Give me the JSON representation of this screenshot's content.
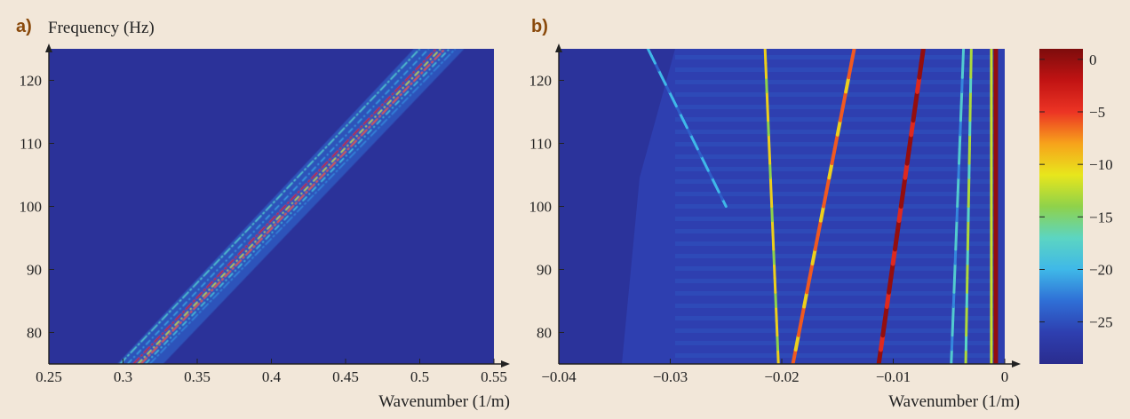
{
  "chart_data": [
    {
      "panel": "a)",
      "type": "heatmap",
      "ylabel": "Frequency (Hz)",
      "xlabel": "Wavenumber (1/m)",
      "xlim": [
        0.25,
        0.55
      ],
      "ylim": [
        75,
        125
      ],
      "xticks": [
        "0.25",
        "0.3",
        "0.35",
        "0.4",
        "0.45",
        "0.5",
        "0.55"
      ],
      "yticks": [
        "80",
        "90",
        "100",
        "110",
        "120"
      ],
      "background_level": -28,
      "ridges": [
        {
          "x0": 0.298,
          "x1": 0.5,
          "level": -18
        },
        {
          "x0": 0.303,
          "x1": 0.506,
          "level": -21
        },
        {
          "x0": 0.307,
          "x1": 0.511,
          "level": -3
        },
        {
          "x0": 0.31,
          "x1": 0.514,
          "level": -12
        },
        {
          "x0": 0.312,
          "x1": 0.517,
          "level": -6
        },
        {
          "x0": 0.315,
          "x1": 0.52,
          "level": -19
        },
        {
          "x0": 0.318,
          "x1": 0.524,
          "level": -22
        }
      ]
    },
    {
      "panel": "b)",
      "type": "heatmap",
      "xlabel": "Wavenumber (1/m)",
      "xlim": [
        -0.04,
        0
      ],
      "ylim": [
        75,
        125
      ],
      "xticks": [
        "−0.04",
        "−0.03",
        "−0.02",
        "−0.01",
        "0"
      ],
      "yticks": [
        "80",
        "90",
        "100",
        "110",
        "120"
      ],
      "background_level": -26,
      "ridges": [
        {
          "x0": -0.025,
          "x1": -0.032,
          "y0": 100,
          "y1": 125,
          "level": -20
        },
        {
          "x0": -0.0203,
          "x1": -0.0215,
          "y0": 75,
          "y1": 125,
          "level": -10
        },
        {
          "x0": -0.019,
          "x1": -0.0135,
          "y0": 75,
          "y1": 125,
          "level": -6
        },
        {
          "x0": -0.0113,
          "x1": -0.0073,
          "y0": 75,
          "y1": 125,
          "level": 0
        },
        {
          "x0": -0.0048,
          "x1": -0.0037,
          "y0": 75,
          "y1": 125,
          "level": -18
        },
        {
          "x0": -0.0035,
          "x1": -0.003,
          "y0": 75,
          "y1": 125,
          "level": -13
        },
        {
          "x0": -0.0012,
          "x1": -0.0012,
          "y0": 75,
          "y1": 125,
          "level": -12
        },
        {
          "x0": -0.0008,
          "x1": -0.0008,
          "y0": 75,
          "y1": 125,
          "level": 0
        }
      ]
    }
  ],
  "colorbar": {
    "range": [
      -29,
      1
    ],
    "ticks": [
      "0",
      "−5",
      "−10",
      "−15",
      "−20",
      "−25"
    ],
    "tick_values": [
      0,
      -5,
      -10,
      -15,
      -20,
      -25
    ],
    "colors": [
      "#2a2c8e",
      "#2e3fb0",
      "#2f6fd6",
      "#3fb8e8",
      "#5cd5c2",
      "#8fd24a",
      "#e8e61c",
      "#f7a21b",
      "#ec3424",
      "#c11313",
      "#7d0c0c"
    ]
  },
  "labels": {
    "panel_a": "a)",
    "panel_b": "b)",
    "a_ylabel": "Frequency (Hz)",
    "a_xlabel": "Wavenumber (1/m)",
    "b_xlabel": "Wavenumber (1/m)"
  }
}
